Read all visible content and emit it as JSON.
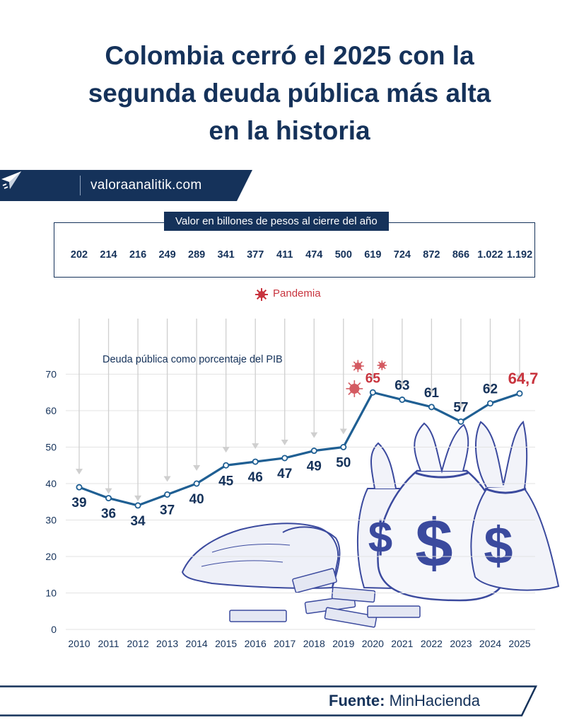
{
  "title": {
    "line1": "Colombia cerró el 2025 con la",
    "line2": "segunda deuda pública más alta",
    "line3": "en la historia"
  },
  "brand": {
    "name": "valoraanalitik.com",
    "logo_icon": "paper-plane-icon"
  },
  "values_box": {
    "label": "Valor en billones de pesos al cierre del año",
    "values": [
      "202",
      "214",
      "216",
      "249",
      "289",
      "341",
      "377",
      "411",
      "474",
      "500",
      "619",
      "724",
      "872",
      "866",
      "1.022",
      "1.192"
    ]
  },
  "legend": {
    "pandemia": "Pandemia",
    "pandemia_icon": "virus-icon"
  },
  "footer": {
    "source_label": "Fuente:",
    "source_value": "MinHacienda"
  },
  "colors": {
    "navy": "#15325a",
    "line": "#1f5f93",
    "accent_red": "#c8343e",
    "arrow_gray": "#c9c9c9",
    "illustration": "#3b4a9e"
  },
  "chart_data": {
    "type": "line",
    "ylabel": "Deuda pública como porcentaje del PIB",
    "x": [
      "2010",
      "2011",
      "2012",
      "2013",
      "2014",
      "2015",
      "2016",
      "2017",
      "2018",
      "2019",
      "2020",
      "2021",
      "2022",
      "2023",
      "2024",
      "2025"
    ],
    "values": [
      39,
      36,
      34,
      37,
      40,
      45,
      46,
      47,
      49,
      50,
      65,
      63,
      61,
      57,
      62,
      64.7
    ],
    "point_labels": [
      "39",
      "36",
      "34",
      "37",
      "40",
      "45",
      "46",
      "47",
      "49",
      "50",
      "65",
      "63",
      "61",
      "57",
      "62",
      "64,7"
    ],
    "highlighted_labels": [
      "65",
      "64,7"
    ],
    "pandemic_years": [
      "2020"
    ],
    "yticks": [
      "0",
      "10",
      "20",
      "30",
      "40",
      "50",
      "60",
      "70"
    ],
    "ylim": [
      0,
      70
    ],
    "grid": true
  }
}
